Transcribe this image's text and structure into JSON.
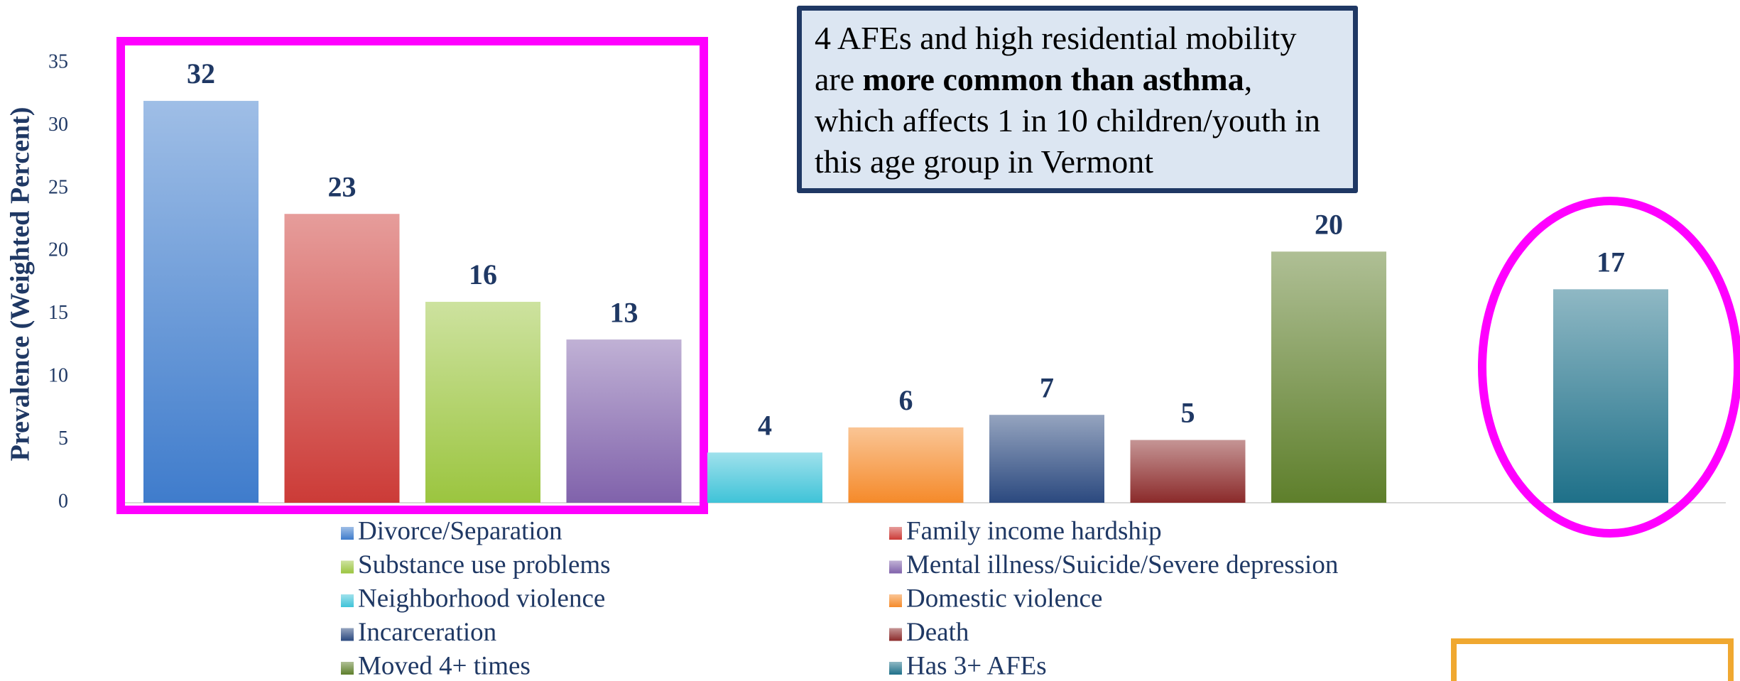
{
  "chart_data": {
    "type": "bar",
    "y_axis_label": "Prevalence (Weighted Percent)",
    "categories": [
      "Divorce/Separation",
      "Family income hardship",
      "Substance use problems",
      "Mental illness/Suicide/Severe depression",
      "Neighborhood violence",
      "Domestic violence",
      "Incarceration",
      "Death",
      "Moved 4+ times",
      null,
      "Has 3+ AFEs"
    ],
    "values": [
      32,
      23,
      16,
      13,
      4,
      6,
      7,
      5,
      20,
      null,
      17
    ],
    "colors": [
      "#3f7ccc",
      "#cc3b37",
      "#9bc53f",
      "#8062ab",
      "#3fc3d8",
      "#f58a2a",
      "#2b497f",
      "#8b2a2a",
      "#5e7f2b",
      null,
      "#1e7089"
    ],
    "ylim": [
      0,
      35
    ],
    "yticks": [
      0,
      5,
      10,
      15,
      20,
      25,
      30,
      35
    ],
    "grid": false,
    "annotation": [
      "4 AFEs and high residential mobility are ",
      "more common than asthma",
      ", which affects 1 in 10 children/youth in this age group in Vermont"
    ]
  }
}
